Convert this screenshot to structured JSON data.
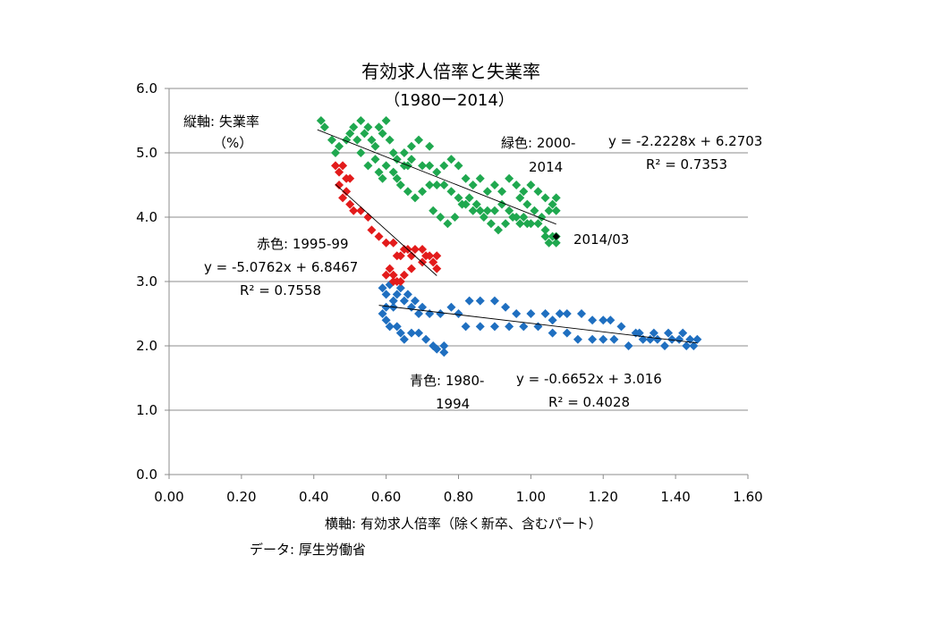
{
  "chart_data": {
    "type": "scatter",
    "title": "有効求人倍率と失業率",
    "subtitle": "（1980ー2014）",
    "xlabel": "横軸: 有効求人倍率（除く新卒、含むパート）",
    "ylabel_line1": "縦軸: 失業率",
    "ylabel_line2": "（%）",
    "source": "データ: 厚生労働省",
    "xlim": [
      0,
      1.6
    ],
    "ylim": [
      0,
      6
    ],
    "x_ticks": [
      "0.00",
      "0.20",
      "0.40",
      "0.60",
      "0.80",
      "1.00",
      "1.20",
      "1.40",
      "1.60"
    ],
    "y_ticks": [
      "0.0",
      "1.0",
      "2.0",
      "3.0",
      "4.0",
      "5.0",
      "6.0"
    ],
    "grid": "horizontal",
    "series": [
      {
        "name": "青色: 1980-1994",
        "color": "#1f6fc0",
        "points": [
          [
            0.59,
            2.9
          ],
          [
            0.6,
            2.8
          ],
          [
            0.61,
            2.95
          ],
          [
            0.62,
            2.7
          ],
          [
            0.6,
            2.6
          ],
          [
            0.59,
            2.5
          ],
          [
            0.6,
            2.4
          ],
          [
            0.61,
            2.3
          ],
          [
            0.62,
            2.6
          ],
          [
            0.63,
            2.8
          ],
          [
            0.64,
            2.9
          ],
          [
            0.65,
            2.7
          ],
          [
            0.66,
            2.8
          ],
          [
            0.67,
            2.6
          ],
          [
            0.68,
            2.7
          ],
          [
            0.69,
            2.5
          ],
          [
            0.7,
            2.6
          ],
          [
            0.63,
            2.3
          ],
          [
            0.64,
            2.2
          ],
          [
            0.65,
            2.1
          ],
          [
            0.67,
            2.2
          ],
          [
            0.69,
            2.2
          ],
          [
            0.71,
            2.1
          ],
          [
            0.73,
            2.0
          ],
          [
            0.74,
            1.95
          ],
          [
            0.76,
            1.9
          ],
          [
            0.76,
            2.0
          ],
          [
            0.72,
            2.5
          ],
          [
            0.75,
            2.5
          ],
          [
            0.78,
            2.6
          ],
          [
            0.8,
            2.5
          ],
          [
            0.83,
            2.7
          ],
          [
            0.86,
            2.7
          ],
          [
            0.9,
            2.7
          ],
          [
            0.93,
            2.6
          ],
          [
            0.96,
            2.5
          ],
          [
            1.0,
            2.5
          ],
          [
            1.04,
            2.5
          ],
          [
            1.08,
            2.5
          ],
          [
            0.82,
            2.3
          ],
          [
            0.86,
            2.3
          ],
          [
            0.9,
            2.3
          ],
          [
            0.94,
            2.3
          ],
          [
            0.98,
            2.3
          ],
          [
            1.02,
            2.3
          ],
          [
            1.06,
            2.4
          ],
          [
            1.1,
            2.5
          ],
          [
            1.14,
            2.5
          ],
          [
            1.17,
            2.4
          ],
          [
            1.2,
            2.4
          ],
          [
            1.22,
            2.4
          ],
          [
            1.25,
            2.3
          ],
          [
            1.06,
            2.2
          ],
          [
            1.1,
            2.2
          ],
          [
            1.13,
            2.1
          ],
          [
            1.17,
            2.1
          ],
          [
            1.2,
            2.1
          ],
          [
            1.23,
            2.1
          ],
          [
            1.27,
            2.0
          ],
          [
            1.29,
            2.2
          ],
          [
            1.31,
            2.1
          ],
          [
            1.33,
            2.1
          ],
          [
            1.35,
            2.1
          ],
          [
            1.37,
            2.0
          ],
          [
            1.39,
            2.1
          ],
          [
            1.41,
            2.1
          ],
          [
            1.43,
            2.0
          ],
          [
            1.44,
            2.1
          ],
          [
            1.45,
            2.0
          ],
          [
            1.46,
            2.1
          ],
          [
            1.42,
            2.2
          ],
          [
            1.38,
            2.2
          ],
          [
            1.34,
            2.2
          ],
          [
            1.3,
            2.2
          ]
        ]
      },
      {
        "name": "赤色: 1995-99",
        "color": "#e31b1b",
        "points": [
          [
            0.46,
            4.8
          ],
          [
            0.47,
            4.7
          ],
          [
            0.48,
            4.8
          ],
          [
            0.49,
            4.6
          ],
          [
            0.5,
            4.6
          ],
          [
            0.47,
            4.5
          ],
          [
            0.48,
            4.3
          ],
          [
            0.49,
            4.4
          ],
          [
            0.5,
            4.2
          ],
          [
            0.51,
            4.1
          ],
          [
            0.53,
            4.1
          ],
          [
            0.55,
            4.0
          ],
          [
            0.56,
            3.8
          ],
          [
            0.58,
            3.7
          ],
          [
            0.6,
            3.6
          ],
          [
            0.62,
            3.6
          ],
          [
            0.63,
            3.4
          ],
          [
            0.64,
            3.4
          ],
          [
            0.65,
            3.5
          ],
          [
            0.66,
            3.5
          ],
          [
            0.67,
            3.4
          ],
          [
            0.68,
            3.5
          ],
          [
            0.7,
            3.5
          ],
          [
            0.71,
            3.4
          ],
          [
            0.72,
            3.4
          ],
          [
            0.73,
            3.3
          ],
          [
            0.74,
            3.4
          ],
          [
            0.74,
            3.2
          ],
          [
            0.7,
            3.3
          ],
          [
            0.67,
            3.2
          ],
          [
            0.65,
            3.1
          ],
          [
            0.63,
            3.0
          ],
          [
            0.62,
            3.1
          ],
          [
            0.61,
            3.2
          ],
          [
            0.62,
            3.0
          ],
          [
            0.64,
            3.0
          ],
          [
            0.6,
            3.1
          ]
        ]
      },
      {
        "name": "緑色: 2000-2014",
        "color": "#1fa84f",
        "points": [
          [
            0.42,
            5.5
          ],
          [
            0.43,
            5.4
          ],
          [
            0.45,
            5.2
          ],
          [
            0.46,
            5.0
          ],
          [
            0.47,
            5.1
          ],
          [
            0.49,
            5.2
          ],
          [
            0.5,
            5.3
          ],
          [
            0.51,
            5.4
          ],
          [
            0.52,
            5.2
          ],
          [
            0.53,
            5.5
          ],
          [
            0.54,
            5.3
          ],
          [
            0.55,
            5.4
          ],
          [
            0.56,
            5.2
          ],
          [
            0.57,
            5.1
          ],
          [
            0.58,
            5.4
          ],
          [
            0.59,
            5.3
          ],
          [
            0.6,
            5.5
          ],
          [
            0.61,
            5.2
          ],
          [
            0.62,
            5.0
          ],
          [
            0.63,
            4.9
          ],
          [
            0.65,
            4.8
          ],
          [
            0.66,
            4.8
          ],
          [
            0.67,
            5.1
          ],
          [
            0.53,
            5.0
          ],
          [
            0.55,
            4.8
          ],
          [
            0.57,
            4.9
          ],
          [
            0.58,
            4.7
          ],
          [
            0.59,
            4.6
          ],
          [
            0.6,
            4.8
          ],
          [
            0.62,
            4.7
          ],
          [
            0.63,
            4.6
          ],
          [
            0.65,
            5.0
          ],
          [
            0.67,
            4.9
          ],
          [
            0.7,
            4.8
          ],
          [
            0.72,
            4.8
          ],
          [
            0.74,
            4.7
          ],
          [
            0.76,
            4.8
          ],
          [
            0.78,
            4.9
          ],
          [
            0.8,
            4.8
          ],
          [
            0.82,
            4.6
          ],
          [
            0.69,
            5.2
          ],
          [
            0.72,
            5.1
          ],
          [
            0.64,
            4.5
          ],
          [
            0.66,
            4.4
          ],
          [
            0.68,
            4.3
          ],
          [
            0.7,
            4.4
          ],
          [
            0.72,
            4.5
          ],
          [
            0.74,
            4.5
          ],
          [
            0.76,
            4.5
          ],
          [
            0.78,
            4.4
          ],
          [
            0.8,
            4.3
          ],
          [
            0.82,
            4.2
          ],
          [
            0.84,
            4.1
          ],
          [
            0.86,
            4.1
          ],
          [
            0.88,
            4.1
          ],
          [
            0.9,
            4.1
          ],
          [
            0.92,
            4.2
          ],
          [
            0.94,
            4.1
          ],
          [
            0.96,
            4.0
          ],
          [
            0.98,
            4.0
          ],
          [
            1.0,
            3.9
          ],
          [
            1.02,
            3.9
          ],
          [
            1.04,
            3.8
          ],
          [
            1.06,
            3.7
          ],
          [
            1.07,
            3.7
          ],
          [
            1.07,
            3.6
          ],
          [
            1.05,
            3.6
          ],
          [
            1.04,
            3.7
          ],
          [
            0.96,
            4.5
          ],
          [
            0.98,
            4.4
          ],
          [
            1.0,
            4.5
          ],
          [
            1.02,
            4.4
          ],
          [
            1.04,
            4.3
          ],
          [
            1.06,
            4.2
          ],
          [
            1.07,
            4.1
          ],
          [
            1.07,
            4.3
          ],
          [
            1.05,
            4.1
          ],
          [
            1.03,
            4.0
          ],
          [
            1.01,
            4.1
          ],
          [
            0.99,
            3.9
          ],
          [
            0.97,
            3.9
          ],
          [
            0.95,
            4.0
          ],
          [
            0.93,
            3.9
          ],
          [
            0.91,
            3.8
          ],
          [
            0.89,
            3.9
          ],
          [
            0.87,
            4.0
          ],
          [
            0.85,
            4.2
          ],
          [
            0.83,
            4.3
          ],
          [
            0.81,
            4.2
          ],
          [
            0.79,
            4.0
          ],
          [
            0.77,
            3.9
          ],
          [
            0.75,
            4.0
          ],
          [
            0.73,
            4.1
          ],
          [
            0.84,
            4.5
          ],
          [
            0.86,
            4.6
          ],
          [
            0.88,
            4.4
          ],
          [
            0.9,
            4.5
          ],
          [
            0.92,
            4.4
          ],
          [
            0.94,
            4.6
          ],
          [
            0.97,
            4.3
          ],
          [
            0.99,
            4.2
          ]
        ]
      }
    ],
    "highlight_point": {
      "x": 1.07,
      "y": 3.7,
      "label": "2014/03",
      "color": "#000000"
    },
    "trendlines": [
      {
        "series": "green",
        "color": "#000000",
        "x_range": [
          0.41,
          1.07
        ],
        "slope": -2.2228,
        "intercept": 6.2703,
        "equation": "y = -2.2228x + 6.2703",
        "r2": "R² = 0.7353"
      },
      {
        "series": "red",
        "color": "#000000",
        "x_range": [
          0.46,
          0.74
        ],
        "slope": -5.0762,
        "intercept": 6.8467,
        "equation": "y = -5.0762x + 6.8467",
        "r2": "R² = 0.7558"
      },
      {
        "series": "blue",
        "color": "#000000",
        "x_range": [
          0.58,
          1.46
        ],
        "slope": -0.6652,
        "intercept": 3.016,
        "equation": "y = -0.6652x + 3.016",
        "r2": "R² = 0.4028"
      }
    ],
    "series_labels": {
      "green_line1": "緑色: 2000-",
      "green_line2": "2014",
      "red": "赤色: 1995-99",
      "blue_line1": "青色: 1980-",
      "blue_line2": "1994"
    }
  }
}
